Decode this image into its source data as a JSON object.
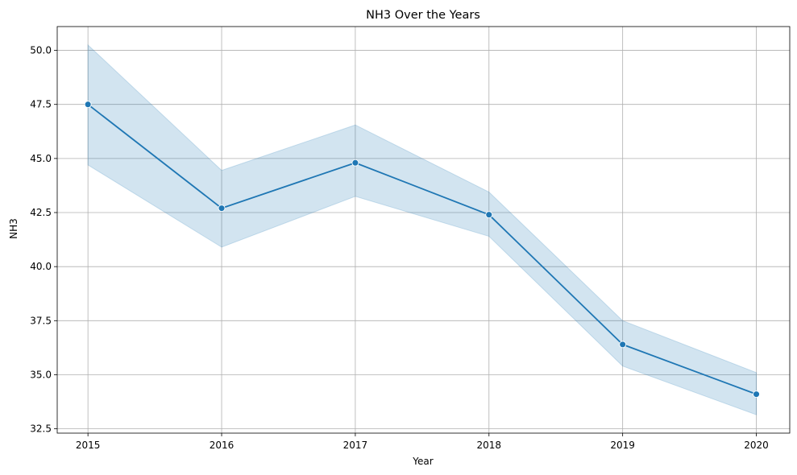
{
  "chart_data": {
    "type": "line",
    "title": "NH3 Over the Years",
    "xlabel": "Year",
    "ylabel": "NH3",
    "x": [
      2015,
      2016,
      2017,
      2018,
      2019,
      2020
    ],
    "xlim": [
      2014.77,
      2020.25
    ],
    "ylim": [
      32.3,
      51.1
    ],
    "yticks": [
      32.5,
      35.0,
      37.5,
      40.0,
      42.5,
      45.0,
      47.5,
      50.0
    ],
    "ytick_labels": [
      "32.5",
      "35.0",
      "37.5",
      "40.0",
      "42.5",
      "45.0",
      "47.5",
      "50.0"
    ],
    "xtick_labels": [
      "2015",
      "2016",
      "2017",
      "2018",
      "2019",
      "2020"
    ],
    "grid": true,
    "series": [
      {
        "values": [
          47.5,
          42.7,
          44.8,
          42.4,
          36.4,
          34.1
        ],
        "ci_lower": [
          44.7,
          40.9,
          43.25,
          41.4,
          35.4,
          33.15
        ],
        "ci_upper": [
          50.25,
          44.45,
          46.55,
          43.45,
          37.5,
          35.1
        ],
        "color": "#1f77b4"
      }
    ]
  }
}
